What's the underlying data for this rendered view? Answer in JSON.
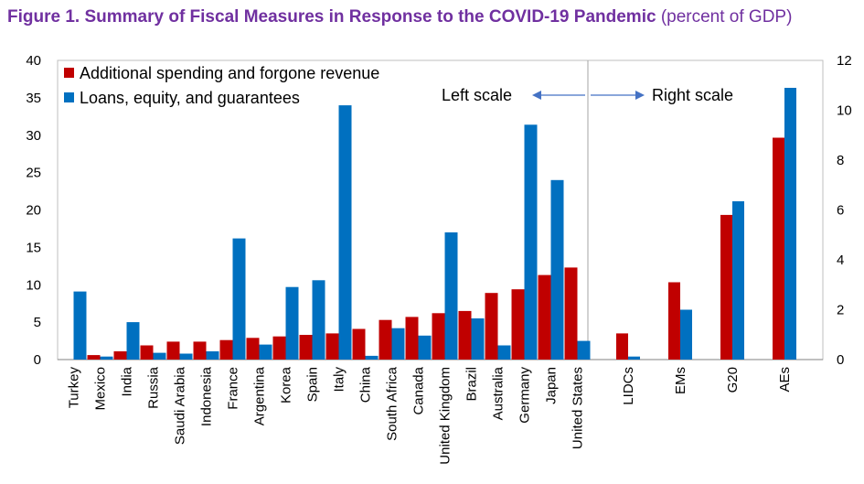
{
  "title": {
    "main": "Figure 1. Summary of Fiscal Measures in Response to the COVID-19 Pandemic",
    "unit": "(percent of GDP)"
  },
  "annotations": {
    "left_scale": "Left scale",
    "right_scale": "Right scale"
  },
  "colors": {
    "spending": "#c00000",
    "loans": "#0070c0",
    "title": "#7030a0"
  },
  "chart_data": {
    "type": "bar",
    "title": "Figure 1. Summary of Fiscal Measures in Response to the COVID-19 Pandemic",
    "legend_position": "top-left",
    "grid": false,
    "left_panel": {
      "axis": "left",
      "ylim": [
        0,
        40
      ],
      "yticks": [
        0,
        5,
        10,
        15,
        20,
        25,
        30,
        35,
        40
      ],
      "categories": [
        "Turkey",
        "Mexico",
        "India",
        "Russia",
        "Saudi Arabia",
        "Indonesia",
        "France",
        "Argentina",
        "Korea",
        "Spain",
        "Italy",
        "China",
        "South Africa",
        "Canada",
        "United Kingdom",
        "Brazil",
        "Australia",
        "Germany",
        "Japan",
        "United States"
      ],
      "series": [
        {
          "name": "Additional spending and forgone revenue",
          "values": [
            0.0,
            0.6,
            1.1,
            1.9,
            2.4,
            2.4,
            2.6,
            2.9,
            3.1,
            3.3,
            3.5,
            4.1,
            5.3,
            5.7,
            6.2,
            6.5,
            8.9,
            9.4,
            11.3,
            12.3
          ]
        },
        {
          "name": "Loans, equity, and guarantees",
          "values": [
            9.1,
            0.4,
            5.0,
            0.9,
            0.8,
            1.1,
            16.2,
            2.0,
            9.7,
            10.6,
            34.0,
            0.5,
            4.2,
            3.2,
            17.0,
            5.5,
            1.9,
            31.4,
            24.0,
            2.5
          ]
        }
      ]
    },
    "right_panel": {
      "axis": "right",
      "ylim": [
        0,
        12
      ],
      "yticks": [
        0,
        2,
        4,
        6,
        8,
        10,
        12
      ],
      "categories": [
        "LIDCs",
        "EMs",
        "G20",
        "AEs"
      ],
      "series": [
        {
          "name": "Additional spending and forgone revenue",
          "values": [
            1.05,
            3.1,
            5.8,
            8.9
          ]
        },
        {
          "name": "Loans, equity, and guarantees",
          "values": [
            0.12,
            2.0,
            6.35,
            10.9
          ]
        }
      ]
    }
  }
}
